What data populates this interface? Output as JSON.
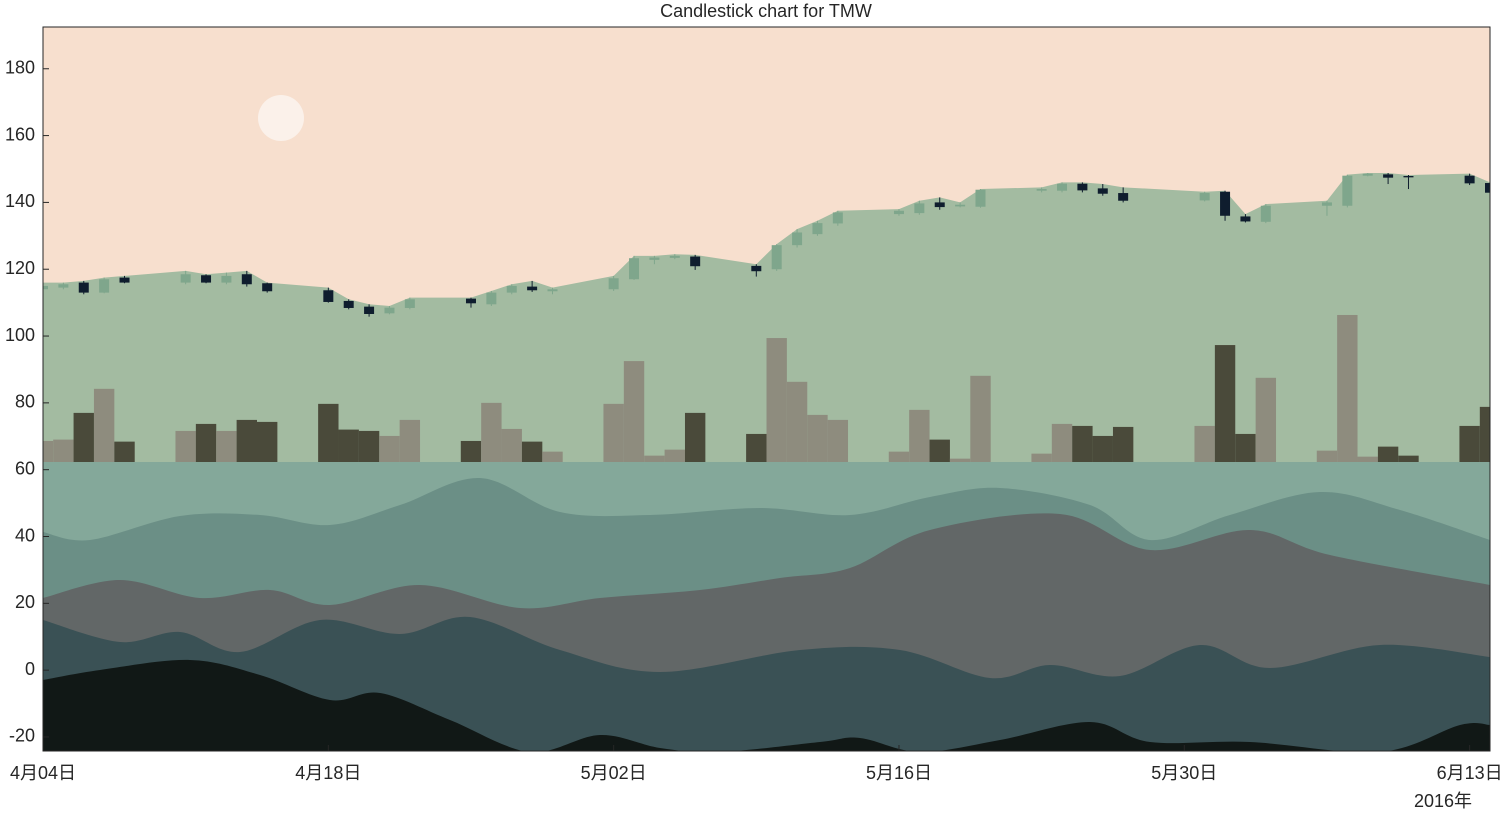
{
  "chart_data": {
    "type": "candlestick",
    "title": "Candlestick chart for TMW",
    "x": [
      "2016-04-04",
      "2016-04-05",
      "2016-04-06",
      "2016-04-07",
      "2016-04-08",
      "2016-04-11",
      "2016-04-12",
      "2016-04-13",
      "2016-04-14",
      "2016-04-15",
      "2016-04-18",
      "2016-04-19",
      "2016-04-20",
      "2016-04-21",
      "2016-04-22",
      "2016-04-25",
      "2016-04-26",
      "2016-04-27",
      "2016-04-28",
      "2016-04-29",
      "2016-05-02",
      "2016-05-03",
      "2016-05-04",
      "2016-05-05",
      "2016-05-06",
      "2016-05-09",
      "2016-05-10",
      "2016-05-11",
      "2016-05-12",
      "2016-05-13",
      "2016-05-16",
      "2016-05-17",
      "2016-05-18",
      "2016-05-19",
      "2016-05-20",
      "2016-05-23",
      "2016-05-24",
      "2016-05-25",
      "2016-05-26",
      "2016-05-27",
      "2016-05-31",
      "2016-06-01",
      "2016-06-02",
      "2016-06-03",
      "2016-06-06",
      "2016-06-07",
      "2016-06-08",
      "2016-06-09",
      "2016-06-10",
      "2016-06-13",
      "2016-06-14"
    ],
    "open": [
      114,
      114.5,
      116,
      113,
      117.5,
      116,
      118.2,
      116,
      118.5,
      115.8,
      113.7,
      110.5,
      108.8,
      106.8,
      108.4,
      111.2,
      109.5,
      113,
      114.8,
      113.4,
      114,
      117,
      122.8,
      123.4,
      123.8,
      121,
      120,
      127.2,
      130.5,
      133.7,
      136.5,
      136.8,
      140,
      138.8,
      138.7,
      143.5,
      143.5,
      145.6,
      144.2,
      142.8,
      140.6,
      143.2,
      135.8,
      134.2,
      139,
      139,
      148,
      148.4,
      147.9,
      148,
      145.8
    ],
    "high": [
      116,
      116,
      116.5,
      117.5,
      118,
      119.5,
      118.5,
      119,
      119.5,
      116,
      114.5,
      111,
      109.5,
      109,
      111.5,
      111.5,
      113.5,
      115.5,
      116.5,
      114.5,
      118,
      124,
      124,
      124.5,
      124.3,
      121.5,
      127.5,
      132,
      134.5,
      137.5,
      138,
      140.5,
      141.5,
      140,
      144,
      144.5,
      146,
      146,
      145.5,
      144.5,
      143.2,
      143.5,
      136.5,
      139.5,
      140.5,
      148.3,
      148.8,
      148.8,
      148.2,
      148.6,
      146
    ],
    "low": [
      113,
      114,
      112.5,
      112.8,
      115.8,
      115.5,
      115.8,
      115.5,
      114.8,
      113,
      110,
      108,
      105.8,
      106.5,
      108,
      108.5,
      109,
      112.5,
      113.2,
      112.5,
      113.5,
      116.8,
      121.5,
      123,
      119.8,
      117.8,
      119.5,
      126.5,
      130,
      133,
      136,
      136.3,
      137.8,
      138.5,
      138.4,
      143,
      143,
      143,
      142,
      140,
      140.3,
      134.5,
      134,
      133.8,
      136,
      138.5,
      147.8,
      145.5,
      144,
      145.2,
      142.5
    ],
    "close": [
      115,
      115.5,
      113,
      117,
      116,
      118.5,
      116,
      118,
      115.5,
      113.4,
      110.2,
      108.4,
      106.6,
      108.5,
      111,
      109.8,
      113,
      115,
      113.7,
      114,
      117.3,
      123.3,
      123.5,
      124,
      120.9,
      119.4,
      127.2,
      131,
      133.8,
      137,
      137.5,
      139.7,
      138.6,
      139.3,
      143.8,
      144,
      145.6,
      143.6,
      142.6,
      140.5,
      142.8,
      136,
      134.3,
      139,
      140,
      148,
      148.6,
      147.4,
      147.5,
      145.7,
      142.9
    ],
    "volume": [
      68.6,
      69,
      77,
      84.2,
      68.4,
      71.6,
      73.7,
      71.6,
      74.9,
      74.3,
      79.7,
      72,
      71.6,
      70.1,
      74.9,
      68.6,
      80,
      72.2,
      68.4,
      65.4,
      79.7,
      92.5,
      64.2,
      66,
      77,
      70.7,
      99.4,
      86.3,
      76.4,
      74.9,
      65.4,
      77.9,
      69,
      63.3,
      88.1,
      64.8,
      73.7,
      73.1,
      70.1,
      72.8,
      73.1,
      97.3,
      70.7,
      87.5,
      65.7,
      106.3,
      63.9,
      66.9,
      64.2,
      73.1,
      78.8
    ],
    "up_color": "#7fa68c",
    "down_color": "#0f1d2e",
    "volume_up_color": "#8e8c7e",
    "volume_down_color": "#4a4a3a",
    "xlim": [
      "2016-04-04",
      "2016-06-14"
    ],
    "xticks": [
      {
        "value": "2016-04-04",
        "label": "4月04日"
      },
      {
        "value": "2016-04-18",
        "label": "4月18日"
      },
      {
        "value": "2016-05-02",
        "label": "5月02日"
      },
      {
        "value": "2016-05-16",
        "label": "5月16日"
      },
      {
        "value": "2016-05-30",
        "label": "5月30日"
      },
      {
        "value": "2016-06-13",
        "label": "6月13日"
      }
    ],
    "x_offset_label": "2016年",
    "ylim": [
      -24.2,
      192.5
    ],
    "yticks": [
      -20,
      0,
      20,
      40,
      60,
      80,
      100,
      120,
      140,
      160,
      180
    ],
    "grid": false
  }
}
